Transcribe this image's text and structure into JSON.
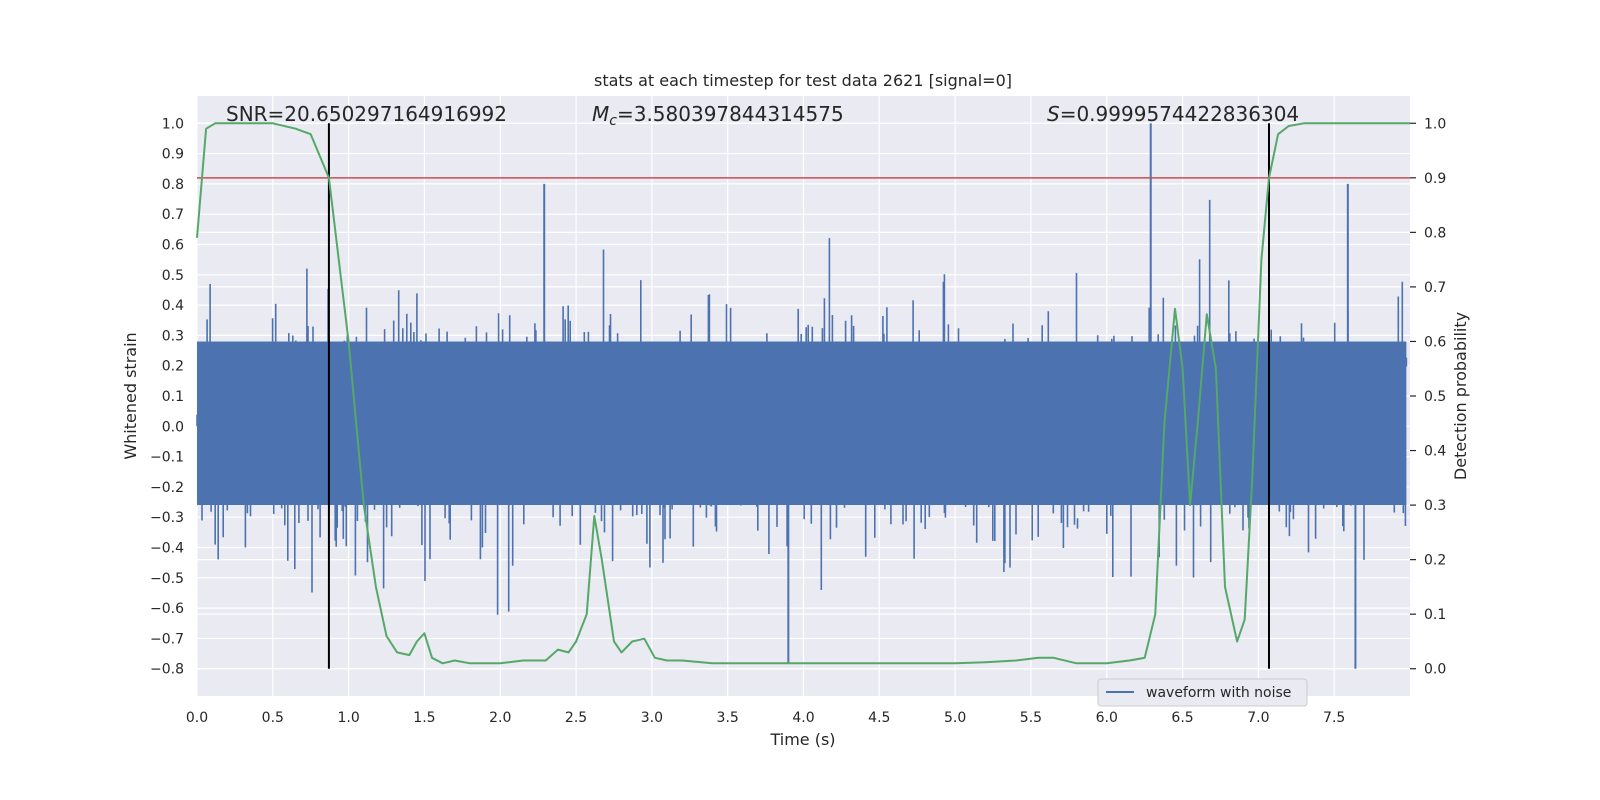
{
  "chart_data": {
    "type": "line",
    "title": "stats at each timestep for test data 2621 [signal=0]",
    "xlabel": "Time (s)",
    "ylabel": "Whitened strain",
    "ylabel_right": "Detection probability",
    "xlim": [
      0.0,
      8.0
    ],
    "ylim": [
      -0.89,
      1.09
    ],
    "ylim_right": [
      -0.05,
      1.05
    ],
    "x_ticks": [
      "0.0",
      "0.5",
      "1.0",
      "1.5",
      "2.0",
      "2.5",
      "3.0",
      "3.5",
      "4.0",
      "4.5",
      "5.0",
      "5.5",
      "6.0",
      "6.5",
      "7.0",
      "7.5"
    ],
    "x_tick_values": [
      0.0,
      0.5,
      1.0,
      1.5,
      2.0,
      2.5,
      3.0,
      3.5,
      4.0,
      4.5,
      5.0,
      5.5,
      6.0,
      6.5,
      7.0,
      7.5
    ],
    "y_ticks": [
      "1.0",
      "0.9",
      "0.8",
      "0.7",
      "0.6",
      "0.5",
      "0.4",
      "0.3",
      "0.2",
      "0.1",
      "0.0",
      "−0.1",
      "−0.2",
      "−0.3",
      "−0.4",
      "−0.5",
      "−0.6",
      "−0.7",
      "−0.8"
    ],
    "y_tick_values": [
      1.0,
      0.9,
      0.8,
      0.7,
      0.6,
      0.5,
      0.4,
      0.3,
      0.2,
      0.1,
      0.0,
      -0.1,
      -0.2,
      -0.3,
      -0.4,
      -0.5,
      -0.6,
      -0.7,
      -0.8
    ],
    "y_ticks_right": [
      "1.0",
      "0.9",
      "0.8",
      "0.7",
      "0.6",
      "0.5",
      "0.4",
      "0.3",
      "0.2",
      "0.1",
      "0.0"
    ],
    "y_tick_values_right": [
      1.0,
      0.9,
      0.8,
      0.7,
      0.6,
      0.5,
      0.4,
      0.3,
      0.2,
      0.1,
      0.0
    ],
    "annotations": {
      "snr": "SNR=20.650297164916992",
      "mc_symbol": "M",
      "mc_sub": "c",
      "mc_value": "=3.580397844314575",
      "s_symbol": "S",
      "s_value": "=0.9999574422836304"
    },
    "legend": {
      "label": "waveform with noise",
      "location": "lower-right"
    },
    "grid": true,
    "background": "#eaeaf2",
    "colors": {
      "waveform": "#4c72b0",
      "probability": "#55a868",
      "threshold": "#c44e52",
      "markers": "#000000"
    },
    "threshold_probability": 0.9,
    "vertical_markers_x": [
      0.87,
      7.07
    ],
    "waveform_noise": {
      "std": 0.15,
      "min": -0.8,
      "max": 1.0,
      "samples": 1200
    },
    "waveform_peaks": [
      {
        "x": 6.29,
        "y": 1.0
      },
      {
        "x": 2.29,
        "y": 0.8
      },
      {
        "x": 7.59,
        "y": 0.8
      },
      {
        "x": 3.9,
        "y": -0.78
      },
      {
        "x": 7.64,
        "y": -0.8
      }
    ],
    "series": [
      {
        "name": "waveform with noise",
        "type": "noise-waveform",
        "color": "#4c72b0"
      },
      {
        "type": "probability",
        "color": "#55a868",
        "x": [
          0.0,
          0.06,
          0.12,
          0.3,
          0.5,
          0.65,
          0.75,
          0.87,
          1.0,
          1.1,
          1.18,
          1.25,
          1.32,
          1.4,
          1.45,
          1.5,
          1.55,
          1.62,
          1.7,
          1.8,
          2.0,
          2.15,
          2.3,
          2.38,
          2.45,
          2.5,
          2.57,
          2.62,
          2.67,
          2.75,
          2.8,
          2.87,
          2.95,
          3.02,
          3.1,
          3.2,
          3.4,
          3.6,
          3.8,
          4.0,
          4.5,
          5.0,
          5.2,
          5.4,
          5.55,
          5.65,
          5.8,
          6.0,
          6.15,
          6.25,
          6.32,
          6.38,
          6.45,
          6.5,
          6.55,
          6.6,
          6.66,
          6.72,
          6.78,
          6.86,
          6.91,
          6.96,
          7.02,
          7.07,
          7.13,
          7.2,
          7.3,
          7.5,
          8.0
        ],
        "y": [
          0.79,
          0.99,
          1.0,
          1.0,
          1.0,
          0.99,
          0.98,
          0.9,
          0.6,
          0.3,
          0.15,
          0.06,
          0.03,
          0.025,
          0.05,
          0.065,
          0.02,
          0.01,
          0.015,
          0.01,
          0.01,
          0.015,
          0.015,
          0.035,
          0.03,
          0.05,
          0.1,
          0.28,
          0.2,
          0.05,
          0.03,
          0.05,
          0.055,
          0.02,
          0.015,
          0.015,
          0.01,
          0.01,
          0.01,
          0.01,
          0.01,
          0.01,
          0.012,
          0.015,
          0.02,
          0.02,
          0.01,
          0.01,
          0.015,
          0.02,
          0.1,
          0.45,
          0.66,
          0.55,
          0.3,
          0.45,
          0.65,
          0.55,
          0.15,
          0.05,
          0.09,
          0.35,
          0.75,
          0.9,
          0.98,
          0.995,
          1.0,
          1.0,
          1.0
        ]
      }
    ]
  }
}
